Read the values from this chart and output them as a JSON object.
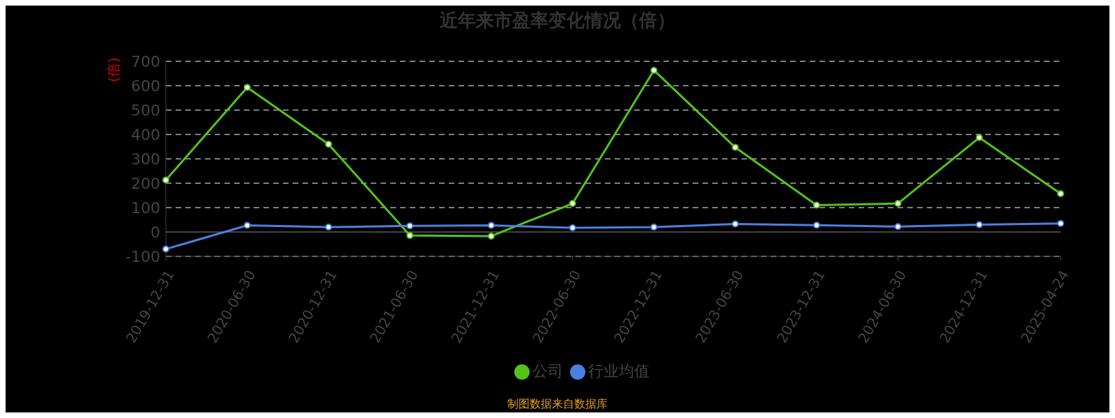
{
  "chart_data": {
    "type": "line",
    "title": "近年来市盈率变化情况（倍）",
    "ylabel": "(倍)",
    "categories": [
      "2019-12-31",
      "2020-06-30",
      "2020-12-31",
      "2021-06-30",
      "2021-12-31",
      "2022-06-30",
      "2022-12-31",
      "2023-06-30",
      "2023-12-31",
      "2024-06-30",
      "2024-12-31",
      "2025-04-24"
    ],
    "series": [
      {
        "name": "公司",
        "color": "#52c41a",
        "values": [
          213,
          593,
          360,
          -14,
          -17,
          117,
          663,
          347,
          110,
          117,
          387,
          157
        ]
      },
      {
        "name": "行业均值",
        "color": "#4a80e0",
        "values": [
          -70,
          27,
          20,
          25,
          27,
          17,
          20,
          33,
          28,
          22,
          30,
          35
        ]
      }
    ],
    "ylim": [
      -100,
      700
    ],
    "yticks": [
      -100,
      0,
      100,
      200,
      300,
      400,
      500,
      600,
      700
    ],
    "grid": "y",
    "legend": "bottom",
    "marker": "circle",
    "line_style": "solid",
    "annotations": [
      "制图数据来自数据库"
    ]
  }
}
